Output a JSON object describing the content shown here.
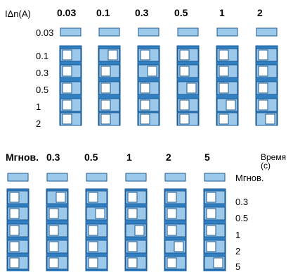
{
  "top": {
    "corner_label": "IΔn(A)",
    "headers": [
      "0.03",
      "0.1",
      "0.3",
      "0.5",
      "1",
      "2"
    ],
    "settings": [
      "0.03",
      "0.1",
      "0.3",
      "0.5",
      "1",
      "2"
    ],
    "selected_index": [
      0,
      1,
      2,
      3,
      4,
      5
    ]
  },
  "bottom": {
    "headers": [
      "Мгнов.",
      "0.3",
      "0.5",
      "1",
      "2",
      "5"
    ],
    "corner_label_line1": "Время",
    "corner_label_line2": "(с)",
    "settings": [
      "Мгнов.",
      "0.3",
      "0.5",
      "1",
      "2",
      "5"
    ],
    "selected_index": [
      0,
      1,
      2,
      3,
      4,
      5
    ]
  },
  "colors": {
    "switch_fill": "#9cc9ea",
    "switch_stroke": "#1a5a96",
    "body_fill": "#2f7fc2",
    "cell_fill": "#ffffff",
    "text": "#000000"
  }
}
